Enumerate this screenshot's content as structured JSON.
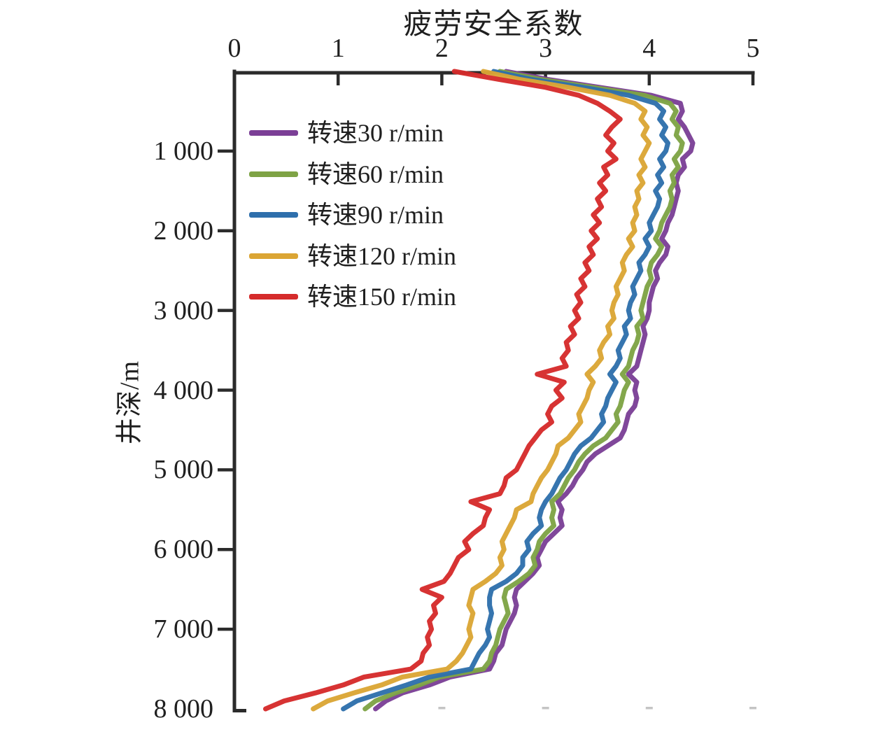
{
  "figure": {
    "background": "#ffffff",
    "axis_color": "#2b2b2b",
    "text_color": "#1f1f1f",
    "faint_tick_color": "#c4c4c4"
  },
  "chart_data": {
    "type": "line",
    "title": "疲劳安全系数",
    "xlabel": "疲劳安全系数",
    "ylabel": "井深/m",
    "x_axis": {
      "label": "疲劳安全系数",
      "position": "top",
      "min": 0,
      "max": 5,
      "ticks": [
        0,
        1,
        2,
        3,
        4,
        5
      ],
      "tick_labels": [
        "0",
        "1",
        "2",
        "3",
        "4",
        "5"
      ]
    },
    "y_axis": {
      "label": "井深/m",
      "min": 0,
      "max": 8000,
      "inverted": true,
      "ticks": [
        1000,
        2000,
        3000,
        4000,
        5000,
        6000,
        7000,
        8000
      ],
      "tick_labels": [
        "1 000",
        "2 000",
        "3 000",
        "4 000",
        "5 000",
        "6 000",
        "7 000",
        "8 000"
      ]
    },
    "legend_position": "upper-left-inside",
    "grid": false,
    "depth_start": 0,
    "depth_step": 100,
    "bottom_faint_tick_values": [
      2,
      3,
      4,
      5
    ],
    "series": [
      {
        "name": "转速30 r/min",
        "color": "#7b3f96",
        "values": [
          2.62,
          3.02,
          3.52,
          4.02,
          4.3,
          4.32,
          4.28,
          4.34,
          4.38,
          4.42,
          4.4,
          4.32,
          4.34,
          4.28,
          4.26,
          4.28,
          4.26,
          4.24,
          4.22,
          4.18,
          4.16,
          4.12,
          4.18,
          4.16,
          4.1,
          4.06,
          4.08,
          4.04,
          4.02,
          4.0,
          4.0,
          3.98,
          3.94,
          3.96,
          3.94,
          3.92,
          3.9,
          3.88,
          3.8,
          3.88,
          3.86,
          3.88,
          3.86,
          3.8,
          3.78,
          3.76,
          3.72,
          3.6,
          3.48,
          3.4,
          3.36,
          3.3,
          3.26,
          3.2,
          3.12,
          3.16,
          3.14,
          3.16,
          3.08,
          3.0,
          2.96,
          2.92,
          2.94,
          2.88,
          2.8,
          2.72,
          2.7,
          2.72,
          2.7,
          2.66,
          2.62,
          2.6,
          2.58,
          2.52,
          2.5,
          2.46,
          2.08,
          1.88,
          1.62,
          1.46,
          1.36
        ]
      },
      {
        "name": "转速60 r/min",
        "color": "#7ea345",
        "values": [
          2.56,
          2.95,
          3.45,
          3.95,
          4.2,
          4.26,
          4.22,
          4.28,
          4.26,
          4.32,
          4.3,
          4.24,
          4.28,
          4.22,
          4.24,
          4.2,
          4.22,
          4.2,
          4.16,
          4.12,
          4.1,
          4.06,
          4.12,
          4.08,
          4.02,
          4.0,
          4.02,
          3.98,
          3.96,
          3.94,
          3.92,
          3.94,
          3.88,
          3.9,
          3.88,
          3.84,
          3.82,
          3.8,
          3.74,
          3.8,
          3.76,
          3.74,
          3.72,
          3.68,
          3.7,
          3.64,
          3.58,
          3.46,
          3.38,
          3.32,
          3.28,
          3.22,
          3.18,
          3.14,
          3.06,
          3.08,
          3.06,
          3.08,
          3.0,
          2.94,
          2.92,
          2.88,
          2.9,
          2.84,
          2.74,
          2.62,
          2.6,
          2.62,
          2.64,
          2.6,
          2.56,
          2.54,
          2.52,
          2.48,
          2.46,
          2.4,
          1.98,
          1.78,
          1.55,
          1.36,
          1.26
        ]
      },
      {
        "name": "转速90 r/min",
        "color": "#2e6fac",
        "values": [
          2.5,
          2.86,
          3.36,
          3.8,
          4.06,
          4.14,
          4.1,
          4.16,
          4.12,
          4.18,
          4.16,
          4.1,
          4.14,
          4.08,
          4.12,
          4.06,
          4.1,
          4.08,
          4.04,
          4.0,
          4.02,
          3.96,
          4.0,
          3.96,
          3.9,
          3.92,
          3.88,
          3.84,
          3.86,
          3.82,
          3.8,
          3.82,
          3.76,
          3.78,
          3.74,
          3.7,
          3.72,
          3.68,
          3.62,
          3.68,
          3.64,
          3.6,
          3.58,
          3.54,
          3.56,
          3.5,
          3.44,
          3.34,
          3.28,
          3.24,
          3.2,
          3.14,
          3.1,
          3.06,
          3.0,
          2.96,
          2.94,
          2.96,
          2.88,
          2.82,
          2.84,
          2.78,
          2.78,
          2.72,
          2.62,
          2.48,
          2.46,
          2.46,
          2.48,
          2.46,
          2.44,
          2.46,
          2.42,
          2.36,
          2.32,
          2.28,
          1.88,
          1.66,
          1.42,
          1.18,
          1.05
        ]
      },
      {
        "name": "转速120 r/min",
        "color": "#dba534",
        "values": [
          2.4,
          2.75,
          3.22,
          3.62,
          3.86,
          3.96,
          3.92,
          3.98,
          3.94,
          4.0,
          3.96,
          3.92,
          3.96,
          3.9,
          3.94,
          3.88,
          3.9,
          3.86,
          3.88,
          3.84,
          3.86,
          3.8,
          3.84,
          3.78,
          3.74,
          3.76,
          3.72,
          3.68,
          3.7,
          3.66,
          3.64,
          3.66,
          3.6,
          3.62,
          3.56,
          3.52,
          3.54,
          3.48,
          3.4,
          3.46,
          3.42,
          3.4,
          3.36,
          3.32,
          3.34,
          3.28,
          3.22,
          3.12,
          3.1,
          3.06,
          3.02,
          2.96,
          2.92,
          2.88,
          2.86,
          2.72,
          2.7,
          2.66,
          2.62,
          2.58,
          2.6,
          2.56,
          2.58,
          2.52,
          2.42,
          2.3,
          2.28,
          2.26,
          2.3,
          2.28,
          2.26,
          2.28,
          2.24,
          2.2,
          2.14,
          2.05,
          1.62,
          1.42,
          1.15,
          0.9,
          0.76
        ]
      },
      {
        "name": "转速150 r/min",
        "color": "#d52b2b",
        "values": [
          2.12,
          2.55,
          3.0,
          3.32,
          3.5,
          3.62,
          3.72,
          3.64,
          3.58,
          3.66,
          3.6,
          3.68,
          3.56,
          3.6,
          3.52,
          3.58,
          3.5,
          3.54,
          3.46,
          3.52,
          3.44,
          3.5,
          3.42,
          3.46,
          3.38,
          3.42,
          3.34,
          3.38,
          3.3,
          3.34,
          3.28,
          3.32,
          3.24,
          3.28,
          3.2,
          3.22,
          3.16,
          3.2,
          2.92,
          3.18,
          3.1,
          3.16,
          3.06,
          3.02,
          3.06,
          2.96,
          2.9,
          2.84,
          2.8,
          2.76,
          2.72,
          2.62,
          2.6,
          2.56,
          2.28,
          2.46,
          2.42,
          2.4,
          2.3,
          2.22,
          2.26,
          2.16,
          2.12,
          2.08,
          2.02,
          1.81,
          2.0,
          1.92,
          1.94,
          1.88,
          1.9,
          1.86,
          1.88,
          1.82,
          1.8,
          1.7,
          1.25,
          1.05,
          0.78,
          0.48,
          0.3
        ]
      }
    ]
  }
}
